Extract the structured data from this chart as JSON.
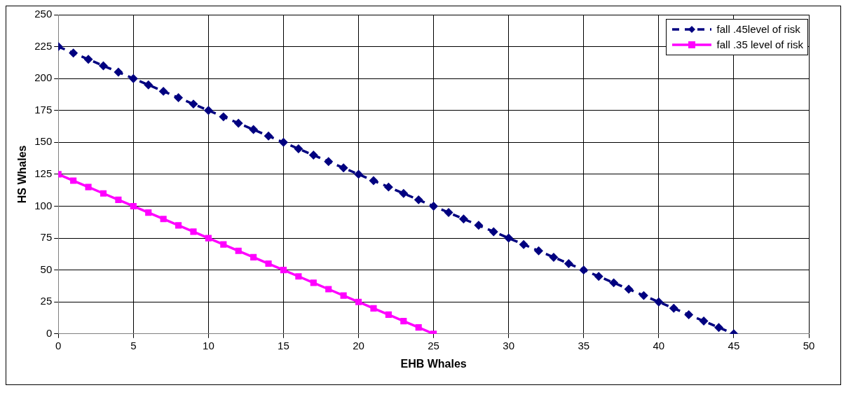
{
  "chart_data": {
    "type": "line",
    "xlabel": "EHB Whales",
    "ylabel": "HS Whales",
    "xlim": [
      0,
      50
    ],
    "xticks": [
      0,
      5,
      10,
      15,
      20,
      25,
      30,
      35,
      40,
      45,
      50
    ],
    "ylim": [
      0,
      250
    ],
    "yticks": [
      0,
      25,
      50,
      75,
      100,
      125,
      150,
      175,
      200,
      225,
      250
    ],
    "grid": true,
    "legend": "top right",
    "series": [
      {
        "name": "fall  .45level of risk",
        "color": "#000080",
        "marker": "diamond",
        "line_style": "dashed",
        "x": [
          0,
          1,
          2,
          3,
          4,
          5,
          6,
          7,
          8,
          9,
          10,
          11,
          12,
          13,
          14,
          15,
          16,
          17,
          18,
          19,
          20,
          21,
          22,
          23,
          24,
          25,
          26,
          27,
          28,
          29,
          30,
          31,
          32,
          33,
          34,
          35,
          36,
          37,
          38,
          39,
          40,
          41,
          42,
          43,
          44,
          45
        ],
        "values": [
          225,
          220,
          215,
          210,
          205,
          200,
          195,
          190,
          185,
          180,
          175,
          170,
          165,
          160,
          155,
          150,
          145,
          140,
          135,
          130,
          125,
          120,
          115,
          110,
          105,
          100,
          95,
          90,
          85,
          80,
          75,
          70,
          65,
          60,
          55,
          50,
          45,
          40,
          35,
          30,
          25,
          20,
          15,
          10,
          5,
          0
        ]
      },
      {
        "name": "fall  .35 level of risk",
        "color": "#ff00ff",
        "marker": "square",
        "line_style": "solid",
        "x": [
          0,
          1,
          2,
          3,
          4,
          5,
          6,
          7,
          8,
          9,
          10,
          11,
          12,
          13,
          14,
          15,
          16,
          17,
          18,
          19,
          20,
          21,
          22,
          23,
          24,
          25
        ],
        "values": [
          125,
          120,
          115,
          110,
          105,
          100,
          95,
          90,
          85,
          80,
          75,
          70,
          65,
          60,
          55,
          50,
          45,
          40,
          35,
          30,
          25,
          20,
          15,
          10,
          5,
          0
        ]
      }
    ]
  }
}
